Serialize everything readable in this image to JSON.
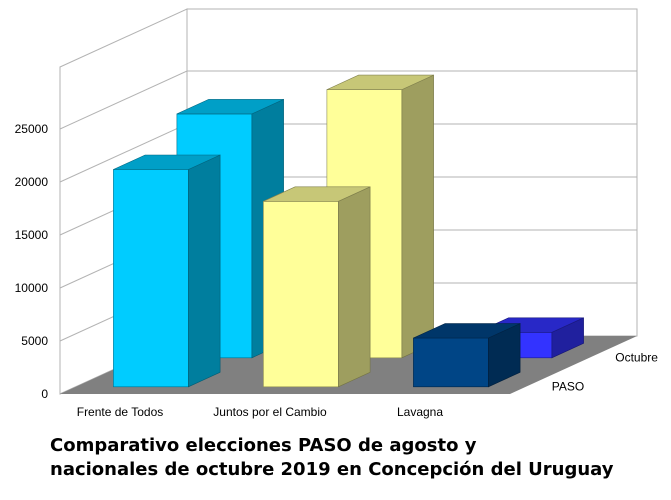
{
  "chart_data": {
    "type": "bar",
    "title_lines": [
      "Comparativo elecciones PASO de agosto y",
      "nacionales de octubre 2019 en Concepción del Uruguay"
    ],
    "categories": [
      "Frente de Todos",
      "Juntos por el Cambio",
      "Lavagna"
    ],
    "series": [
      {
        "name": "PASO",
        "values": [
          20500,
          17500,
          4600
        ],
        "colors": [
          "#00ccff",
          "#ffff99",
          "#004586"
        ]
      },
      {
        "name": "Octubre",
        "values": [
          23000,
          25300,
          2400
        ],
        "colors": [
          "#00ccff",
          "#ffff99",
          "#3333ff"
        ]
      }
    ],
    "ylim": [
      0,
      25000
    ],
    "yticks": [
      "0",
      "5000",
      "10000",
      "15000",
      "20000",
      "25000"
    ],
    "grid": true,
    "floor_color": "#808080"
  }
}
